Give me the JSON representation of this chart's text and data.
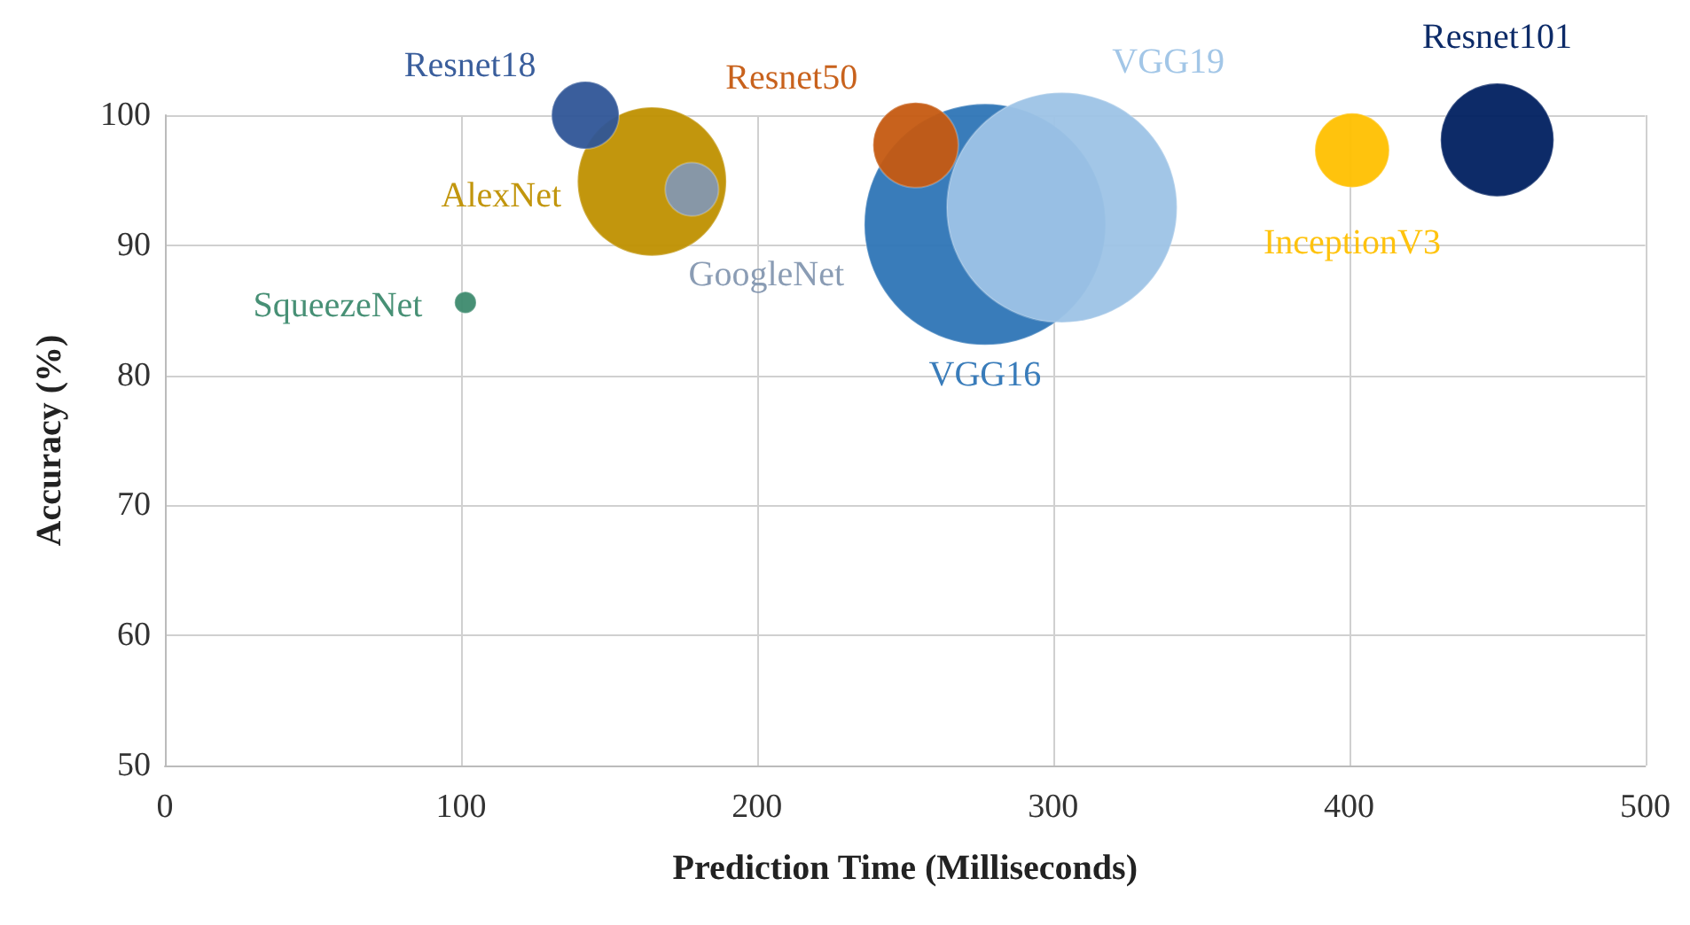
{
  "chart_data": {
    "type": "bubble",
    "xlabel": "Prediction Time (Milliseconds)",
    "ylabel": "Accuracy (%)",
    "xlim": [
      0,
      500
    ],
    "xticks": [
      0,
      100,
      200,
      300,
      400,
      500
    ],
    "ylim": [
      50,
      100
    ],
    "yticks": [
      50,
      60,
      70,
      80,
      90,
      100
    ],
    "grid": true,
    "legend": false,
    "series": [
      {
        "name": "VGG16",
        "color": "#2e75b6",
        "x": [
          277
        ],
        "values": [
          91.6
        ],
        "sizes": [
          1
        ]
      },
      {
        "name": "VGG19",
        "color": "#9dc3e6",
        "x": [
          303
        ],
        "values": [
          92.9
        ],
        "sizes": [
          0.91
        ]
      },
      {
        "name": "AlexNet",
        "color": "#bf9000",
        "x": [
          164.5
        ],
        "values": [
          94.9
        ],
        "sizes": [
          0.38
        ]
      },
      {
        "name": "Resnet101",
        "color": "#002060",
        "x": [
          450
        ],
        "values": [
          98.1
        ],
        "sizes": [
          0.22
        ]
      },
      {
        "name": "Resnet50",
        "color": "#c55a11",
        "x": [
          253.6
        ],
        "values": [
          97.7
        ],
        "sizes": [
          0.125
        ]
      },
      {
        "name": "InceptionV3",
        "color": "#ffc000",
        "x": [
          401
        ],
        "values": [
          97.3
        ],
        "sizes": [
          0.095
        ]
      },
      {
        "name": "Resnet18",
        "color": "#2f5597",
        "x": [
          142
        ],
        "values": [
          100
        ],
        "sizes": [
          0.078
        ]
      },
      {
        "name": "GoogleNet",
        "color": "#8497b0",
        "x": [
          178
        ],
        "values": [
          94.3
        ],
        "sizes": [
          0.049
        ]
      },
      {
        "name": "SqueezeNet",
        "color": "#3d8a6e",
        "x": [
          101.5
        ],
        "values": [
          85.6
        ],
        "sizes": [
          0.008
        ]
      }
    ]
  }
}
